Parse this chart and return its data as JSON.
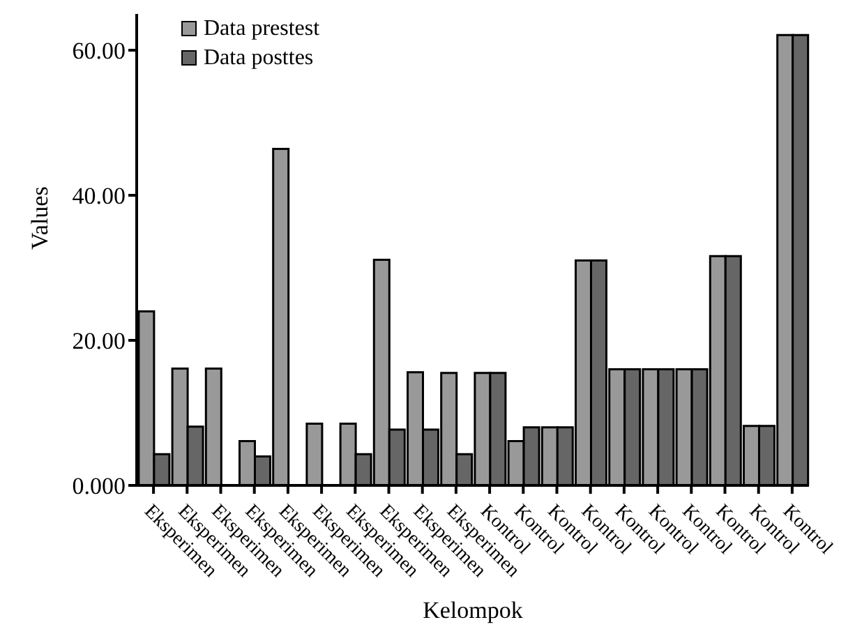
{
  "chart_data": {
    "type": "bar",
    "xlabel": "Kelompok",
    "ylabel": "Values",
    "categories": [
      "Eksperimen",
      "Eksperimen",
      "Eksperimen",
      "Eksperimen",
      "Eksperimen",
      "Eksperimen",
      "Eksperimen",
      "Eksperimen",
      "Eksperimen",
      "Eksperimen",
      "Kontrol",
      "Kontrol",
      "Kontrol",
      "Kontrol",
      "Kontrol",
      "Kontrol",
      "Kontrol",
      "Kontrol",
      "Kontrol",
      "Kontrol"
    ],
    "series": [
      {
        "name": "Data prestest",
        "color": "#999999",
        "values": [
          24.0,
          16.1,
          16.1,
          6.1,
          46.4,
          8.5,
          8.5,
          31.1,
          15.6,
          15.5,
          15.5,
          6.1,
          8.0,
          31.0,
          16.0,
          16.0,
          16.0,
          31.6,
          8.2,
          62.1
        ]
      },
      {
        "name": "Data posttes",
        "color": "#666666",
        "values": [
          4.3,
          8.1,
          0,
          4.0,
          0,
          0,
          4.3,
          7.7,
          7.7,
          4.3,
          15.5,
          8.0,
          8.0,
          31.0,
          16.0,
          16.0,
          16.0,
          31.6,
          8.2,
          62.1
        ]
      }
    ],
    "ylim": [
      0,
      65
    ],
    "yticks": [
      {
        "value": 0,
        "label": "0.000"
      },
      {
        "value": 20,
        "label": "20.00"
      },
      {
        "value": 40,
        "label": "40.00"
      },
      {
        "value": 60,
        "label": "60.00"
      }
    ],
    "grid": false,
    "legend": "top left"
  }
}
